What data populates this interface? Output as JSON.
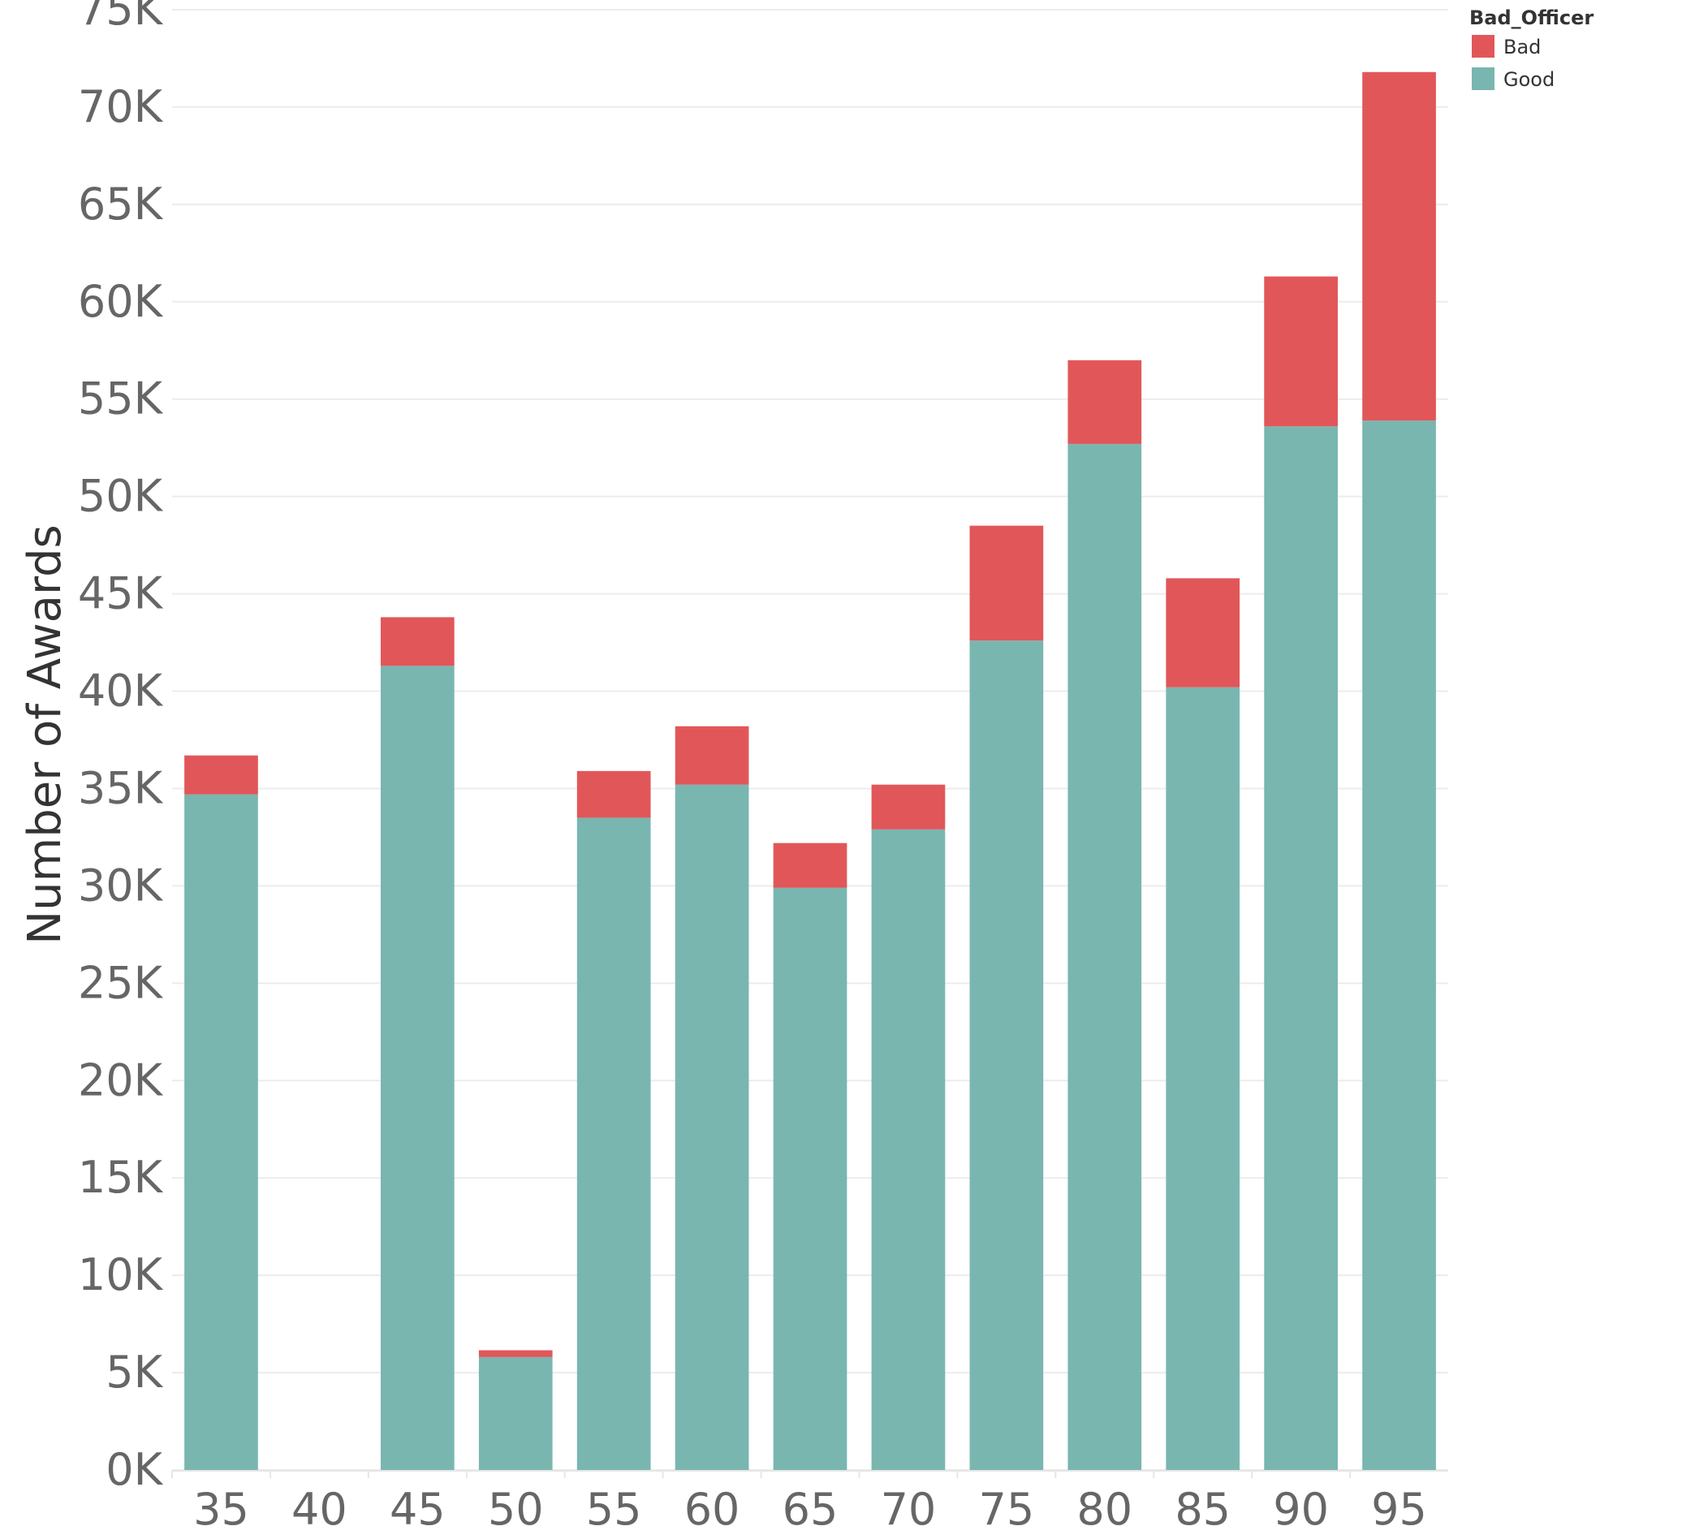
{
  "chart_data": {
    "type": "bar",
    "stacked": true,
    "ylabel": "Number of Awards",
    "xlabel": "",
    "ylim": [
      0,
      75000
    ],
    "yticks": [
      0,
      5000,
      10000,
      15000,
      20000,
      25000,
      30000,
      35000,
      40000,
      45000,
      50000,
      55000,
      60000,
      65000,
      70000,
      75000
    ],
    "ytick_labels": [
      "0K",
      "5K",
      "10K",
      "15K",
      "20K",
      "25K",
      "30K",
      "35K",
      "40K",
      "45K",
      "50K",
      "55K",
      "60K",
      "65K",
      "70K",
      "75K"
    ],
    "categories": [
      "35",
      "40",
      "45",
      "50",
      "55",
      "60",
      "65",
      "70",
      "75",
      "80",
      "85",
      "90",
      "95"
    ],
    "series": [
      {
        "name": "Good",
        "color": "#79b6b0",
        "values": [
          34700,
          0,
          41300,
          5800,
          33500,
          35200,
          29900,
          32900,
          42600,
          52700,
          40200,
          53600,
          53900
        ]
      },
      {
        "name": "Bad",
        "color": "#e15759",
        "values": [
          2000,
          0,
          2500,
          350,
          2400,
          3000,
          2300,
          2300,
          5900,
          4300,
          5600,
          7700,
          17900
        ]
      }
    ],
    "legend": {
      "title": "Bad_Officer",
      "position": "top-right",
      "items": [
        {
          "label": "Bad",
          "color": "#e15759"
        },
        {
          "label": "Good",
          "color": "#79b6b0"
        }
      ]
    },
    "grid": {
      "horizontal": true,
      "vertical": false
    }
  }
}
